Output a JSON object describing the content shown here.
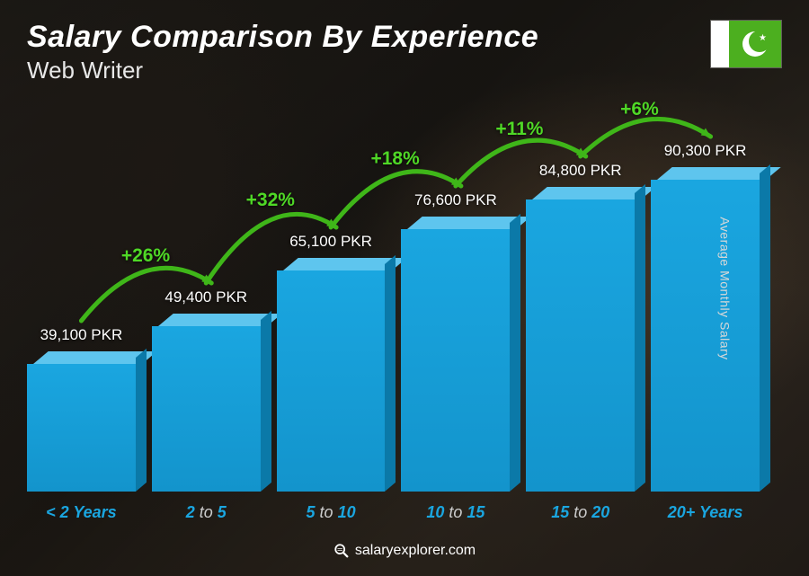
{
  "header": {
    "title": "Salary Comparison By Experience",
    "subtitle": "Web Writer",
    "flag": {
      "left_color": "#ffffff",
      "right_color": "#4caf1f"
    }
  },
  "axis": {
    "ylabel": "Average Monthly Salary"
  },
  "chart": {
    "type": "bar",
    "currency": "PKR",
    "max_value": 100000,
    "bar_fill": "#1aa6e0",
    "bar_top": "#5ec5ee",
    "bar_side": "#0b79a8",
    "label_highlight_color": "#1aa6e0",
    "arc_color": "#3fb619",
    "arc_label_color": "#4fd826",
    "value_fontsize": 17,
    "xlabel_fontsize": 18,
    "arc_label_fontsize": 21,
    "bars": [
      {
        "label_pre": "< 2",
        "label_post": " Years",
        "value": 39100,
        "value_label": "39,100 PKR"
      },
      {
        "label_pre": "2",
        "label_mid": " to ",
        "label_post": "5",
        "value": 49400,
        "value_label": "49,400 PKR"
      },
      {
        "label_pre": "5",
        "label_mid": " to ",
        "label_post": "10",
        "value": 65100,
        "value_label": "65,100 PKR"
      },
      {
        "label_pre": "10",
        "label_mid": " to ",
        "label_post": "15",
        "value": 76600,
        "value_label": "76,600 PKR"
      },
      {
        "label_pre": "15",
        "label_mid": " to ",
        "label_post": "20",
        "value": 84800,
        "value_label": "84,800 PKR"
      },
      {
        "label_pre": "20+",
        "label_post": " Years",
        "value": 90300,
        "value_label": "90,300 PKR"
      }
    ],
    "arcs": [
      {
        "from": 0,
        "to": 1,
        "label": "+26%"
      },
      {
        "from": 1,
        "to": 2,
        "label": "+32%"
      },
      {
        "from": 2,
        "to": 3,
        "label": "+18%"
      },
      {
        "from": 3,
        "to": 4,
        "label": "+11%"
      },
      {
        "from": 4,
        "to": 5,
        "label": "+6%"
      }
    ]
  },
  "footer": {
    "site": "salaryexplorer.com"
  }
}
